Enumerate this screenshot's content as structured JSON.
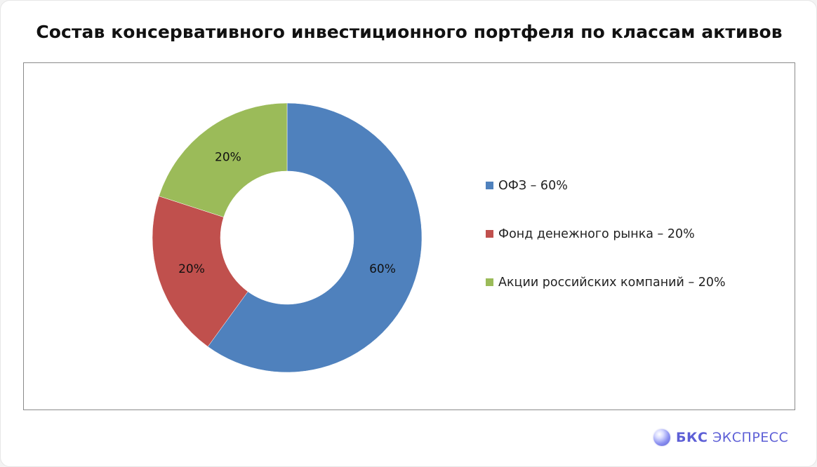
{
  "header": {
    "title": "Состав консервативного инвестиционного портфеля по классам активов"
  },
  "brand": {
    "strong": "БКС",
    "light": "ЭКСПРЕСС"
  },
  "colors": {
    "blue": "#4f81bd",
    "red": "#c0504d",
    "green": "#9bbb59"
  },
  "chart_data": {
    "type": "pie",
    "style": "donut",
    "title": "Состав консервативного инвестиционного портфеля по классам активов",
    "legend_position": "right",
    "slices": [
      {
        "name": "ОФЗ",
        "value": 60,
        "label": "60%",
        "legend": "ОФЗ – 60%",
        "color": "#4f81bd"
      },
      {
        "name": "Фонд денежного рынка",
        "value": 20,
        "label": "20%",
        "legend": "Фонд денежного рынка – 20%",
        "color": "#c0504d"
      },
      {
        "name": "Акции российских компаний",
        "value": 20,
        "label": "20%",
        "legend": "Акции российских компаний – 20%",
        "color": "#9bbb59"
      }
    ]
  }
}
